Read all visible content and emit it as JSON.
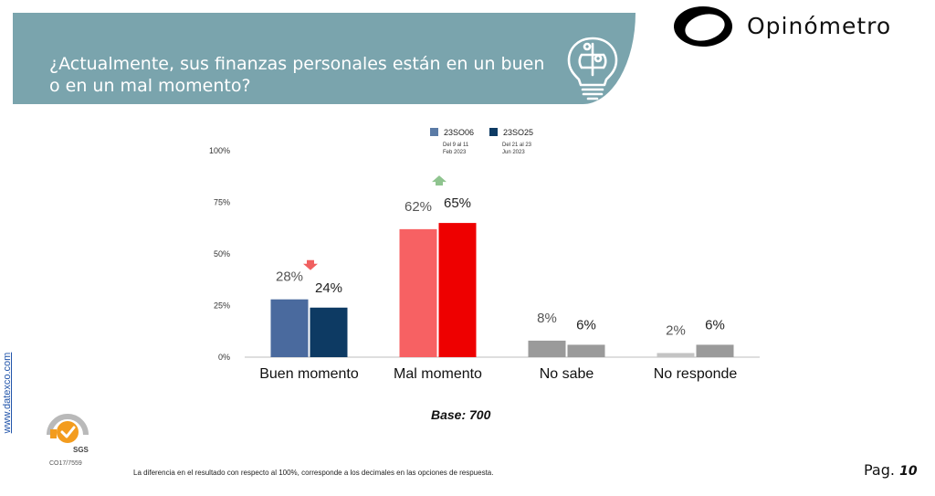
{
  "header": {
    "title": "¿Actualmente, sus finanzas personales están en un buen o en un mal momento?",
    "icon": "lightbulb-puzzle-icon"
  },
  "brand": {
    "name": "Opinómetro",
    "icon": "opinometro-logo"
  },
  "chart_data": {
    "type": "bar",
    "categories": [
      "Buen momento",
      "Mal momento",
      "No sabe",
      "No responde"
    ],
    "series": [
      {
        "name": "23SO06",
        "subtitle": [
          "Del 9 al 11",
          "Feb 2023"
        ],
        "values": [
          28,
          62,
          8,
          2
        ],
        "labels": [
          "28%",
          "62%",
          "8%",
          "2%"
        ]
      },
      {
        "name": "23SO25",
        "subtitle": [
          "Del 21 al 23",
          "Jun 2023"
        ],
        "values": [
          24,
          65,
          6,
          6
        ],
        "labels": [
          "24%",
          "65%",
          "6%",
          "6%"
        ]
      }
    ],
    "yticks": [
      0,
      25,
      50,
      75,
      100
    ],
    "ytick_labels": [
      "0%",
      "25%",
      "50%",
      "75%",
      "100%"
    ],
    "ylim": [
      0,
      100
    ],
    "grid": false,
    "legend": "top-center",
    "colors": {
      "series1": [
        "#4a6a9e",
        "#f76163",
        "#9a9a9a",
        "#c4c4c4"
      ],
      "series2": [
        "#0d3a63",
        "#ee0000",
        "#9a9a9a",
        "#9a9a9a"
      ],
      "legend": [
        "#5b7ba6",
        "#0d3a63"
      ],
      "arrow_up": "#8fc48f",
      "arrow_down": "#f06060"
    },
    "change_indicators": [
      {
        "category": "Buen momento",
        "direction": "down"
      },
      {
        "category": "Mal momento",
        "direction": "up"
      }
    ]
  },
  "base_label": "Base: 700",
  "footnote": "La diferencia en el resultado con respecto al 100%, corresponde a los decimales en las opciones de respuesta.",
  "page": {
    "prefix": "Pag.",
    "number": "10"
  },
  "side_link": "www.datexco.com",
  "certification": {
    "seal": "SGS",
    "code": "CO17/7559"
  }
}
